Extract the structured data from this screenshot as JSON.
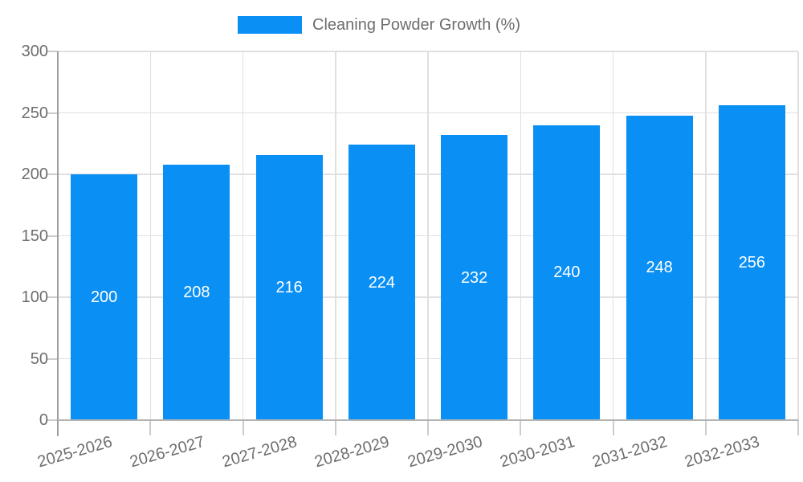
{
  "legend": {
    "label": "Cleaning Powder Growth (%)"
  },
  "colors": {
    "bar": "#0a8ff5",
    "bar_value_text": "#ffffff",
    "axis_text": "#6e6e6e",
    "gridline": "#e0e0e0",
    "tick": "#cccccc",
    "y_axis_line": "#9e9e9e",
    "x_axis_line": "#b3b3b3",
    "background": "#ffffff"
  },
  "chart_data": {
    "type": "bar",
    "title": "",
    "series_name": "Cleaning Powder Growth (%)",
    "categories": [
      "2025-2026",
      "2026-2027",
      "2027-2028",
      "2028-2029",
      "2029-2030",
      "2030-2031",
      "2031-2032",
      "2032-2033"
    ],
    "values": [
      200,
      208,
      216,
      224,
      232,
      240,
      248,
      256
    ],
    "xlabel": "",
    "ylabel": "",
    "ylim": [
      0,
      300
    ],
    "yticks": [
      0,
      50,
      100,
      150,
      200,
      250,
      300
    ],
    "grid": true,
    "legend_position": "top-center",
    "value_labels": "inside-center"
  }
}
